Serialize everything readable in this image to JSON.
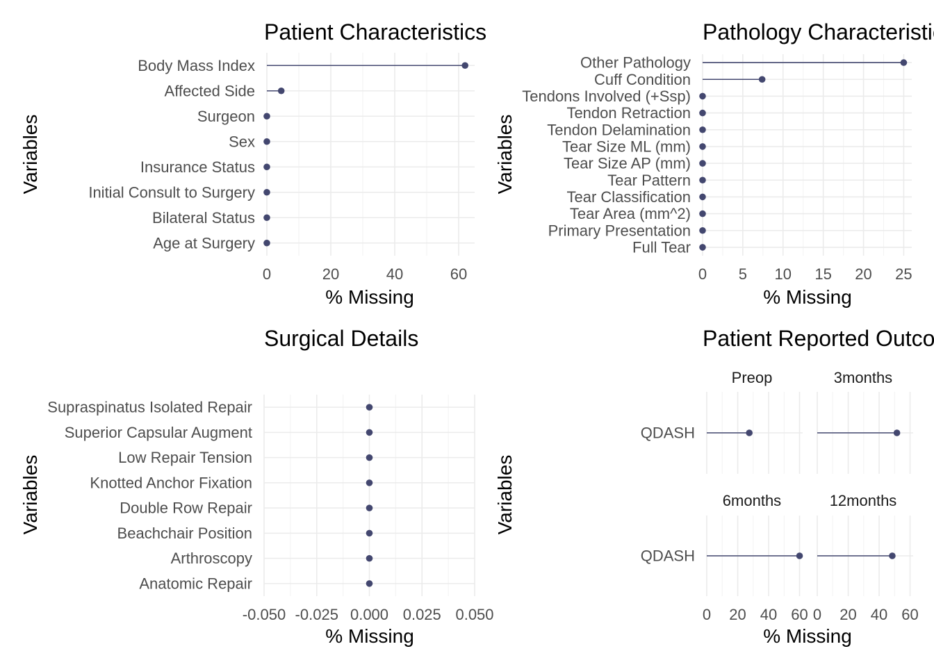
{
  "colors": {
    "point": "#43476f",
    "grid_major": "#ebebeb",
    "grid_minor": "#f4f4f4",
    "text": "#4d4d4d"
  },
  "chart_data": [
    {
      "type": "lollipop",
      "title": "Patient Characteristics",
      "xlabel": "% Missing",
      "ylabel": "Variables",
      "xlim": [
        0,
        65
      ],
      "xticks": [
        "0",
        "20",
        "40",
        "60"
      ],
      "categories": [
        "Body Mass Index",
        "Affected Side",
        "Surgeon",
        "Sex",
        "Insurance Status",
        "Initial Consult to Surgery",
        "Bilateral Status",
        "Age at Surgery"
      ],
      "values": [
        62,
        4.5,
        0,
        0,
        0,
        0,
        0,
        0
      ]
    },
    {
      "type": "lollipop",
      "title": "Pathology Characteristics",
      "xlabel": "% Missing",
      "ylabel": "Variables",
      "xlim": [
        0,
        26
      ],
      "xticks": [
        "0",
        "5",
        "10",
        "15",
        "20",
        "25"
      ],
      "categories": [
        "Other Pathology",
        "Cuff Condition",
        "Tendons Involved (+Ssp)",
        "Tendon Retraction",
        "Tendon Delamination",
        "Tear Size ML (mm)",
        "Tear Size AP (mm)",
        "Tear Pattern",
        "Tear Classification",
        "Tear Area (mm^2)",
        "Primary Presentation",
        "Full Tear"
      ],
      "values": [
        25,
        7.4,
        0,
        0,
        0,
        0,
        0,
        0,
        0,
        0,
        0,
        0
      ]
    },
    {
      "type": "lollipop",
      "title": "Surgical Details",
      "xlabel": "% Missing",
      "ylabel": "Variables",
      "xlim": [
        -0.05,
        0.05
      ],
      "xticks": [
        "-0.050",
        "-0.025",
        "0.000",
        "0.025",
        "0.050"
      ],
      "categories": [
        "Supraspinatus Isolated Repair",
        "Superior Capsular Augment",
        "Low Repair Tension",
        "Knotted Anchor Fixation",
        "Double Row Repair",
        "Beachchair Position",
        "Arthroscopy",
        "Anatomic Repair"
      ],
      "values": [
        0,
        0,
        0,
        0,
        0,
        0,
        0,
        0
      ]
    },
    {
      "type": "lollipop",
      "title": "Patient Reported Outcomes",
      "xlabel": "% Missing",
      "ylabel": "Variables",
      "xlim": [
        0,
        62
      ],
      "xticks": [
        "0",
        "20",
        "40",
        "60"
      ],
      "facets": [
        {
          "name": "Preop",
          "categories": [
            "QDASH"
          ],
          "values": [
            27.5
          ]
        },
        {
          "name": "3months",
          "categories": [
            "QDASH"
          ],
          "values": [
            51.5
          ]
        },
        {
          "name": "6months",
          "categories": [
            "QDASH"
          ],
          "values": [
            60
          ]
        },
        {
          "name": "12months",
          "categories": [
            "QDASH"
          ],
          "values": [
            48.5
          ]
        }
      ]
    }
  ]
}
